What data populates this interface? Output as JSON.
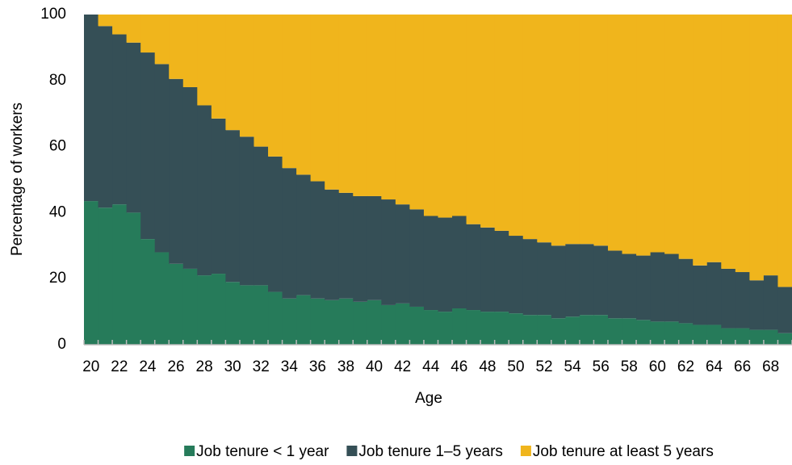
{
  "chart_data": {
    "type": "stacked-step-area",
    "y_label": "Percentage of workers",
    "x_label": "Age",
    "categories": [
      "20",
      null,
      "22",
      null,
      "24",
      null,
      "26",
      null,
      "28",
      null,
      "30",
      null,
      "32",
      null,
      "34",
      null,
      "36",
      null,
      "38",
      null,
      "40",
      null,
      "42",
      null,
      "44",
      null,
      "46",
      null,
      "48",
      null,
      "50",
      null,
      "52",
      null,
      "54",
      null,
      "56",
      null,
      "58",
      null,
      "60",
      null,
      "62",
      null,
      "64",
      null,
      "66",
      null,
      "68",
      null
    ],
    "series": [
      {
        "name": "Job tenure < 1 year",
        "color": "#267b5a",
        "values": [
          43.5,
          41.5,
          42.5,
          40,
          32,
          28,
          24.5,
          23,
          21,
          21.5,
          19,
          18,
          18,
          16,
          14,
          15,
          14,
          13.5,
          14,
          13,
          13.5,
          12,
          12.5,
          11.5,
          10.5,
          10,
          11,
          10.5,
          10,
          10,
          9.5,
          9,
          9,
          8,
          8.5,
          9,
          9,
          8,
          8,
          7.5,
          7,
          7,
          6.5,
          6,
          6,
          5,
          5,
          4.5,
          4.5,
          3.5
        ]
      },
      {
        "name": "Job tenure 1–5 years",
        "color": "#354f56",
        "values": [
          56.5,
          55,
          51.5,
          51.5,
          56.5,
          57,
          56,
          55,
          51.5,
          47,
          46,
          45,
          42,
          41,
          39.5,
          36.5,
          35.5,
          33.5,
          32,
          32,
          31.5,
          32,
          30,
          29.5,
          28.5,
          28.5,
          28,
          26,
          25.5,
          24.5,
          23.5,
          23,
          22,
          22,
          22,
          21.5,
          21,
          20.5,
          19.5,
          19.5,
          21,
          20.5,
          19.5,
          18,
          19,
          18,
          17,
          15,
          16.5,
          14
        ]
      },
      {
        "name": "Job tenure at least 5 years",
        "color": "#f0b51c",
        "values": [
          0,
          3.5,
          6,
          8.5,
          11.5,
          15,
          19.5,
          22,
          27.5,
          31.5,
          35,
          37,
          40,
          43,
          46.5,
          48.5,
          50.5,
          53,
          54,
          55,
          55,
          56,
          57.5,
          59,
          61,
          61.5,
          61,
          63.5,
          64.5,
          65.5,
          67,
          68,
          69,
          70,
          69.5,
          69.5,
          70,
          71.5,
          72.5,
          73,
          72,
          72.5,
          74,
          76,
          75,
          77,
          78,
          80.5,
          79,
          82.5
        ]
      }
    ],
    "ylim": [
      0,
      100
    ],
    "yticks": [
      0,
      20,
      40,
      60,
      80,
      100
    ],
    "grid": false
  }
}
